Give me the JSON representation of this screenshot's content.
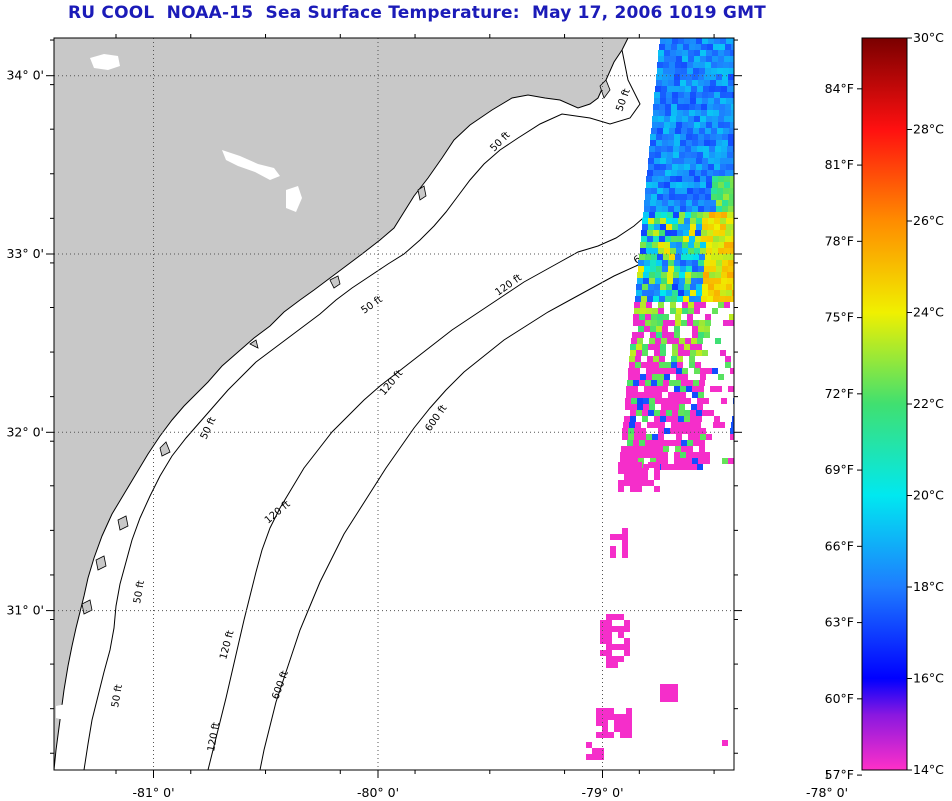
{
  "title": "RU COOL  NOAA-15  Sea Surface Temperature:  May 17, 2006 1019 GMT",
  "map": {
    "lat_ticks": [
      {
        "value": 34,
        "label": "34° 0'"
      },
      {
        "value": 33,
        "label": "33° 0'"
      },
      {
        "value": 32,
        "label": "32° 0'"
      },
      {
        "value": 31,
        "label": "31° 0'"
      }
    ],
    "lon_ticks": [
      {
        "value": -81,
        "label": "-81° 0'"
      },
      {
        "value": -80,
        "label": "-80° 0'"
      },
      {
        "value": -79,
        "label": "-79° 0'"
      },
      {
        "value": -78,
        "label": "-78° 0'"
      }
    ],
    "contour_labels": [
      "50 ft",
      "120 ft",
      "600 ft"
    ],
    "colors": {
      "land": "#c8c8c8",
      "ocean": "#ffffff",
      "coast": "#000000"
    }
  },
  "colorbar": {
    "celsius_labels": [
      "30°C",
      "28°C",
      "26°C",
      "24°C",
      "22°C",
      "20°C",
      "18°C",
      "16°C",
      "14°C"
    ],
    "celsius_values": [
      30,
      28,
      26,
      24,
      22,
      20,
      18,
      16,
      14
    ],
    "fahrenheit_labels": [
      "84°F",
      "81°F",
      "78°F",
      "75°F",
      "72°F",
      "69°F",
      "66°F",
      "63°F",
      "60°F",
      "57°F"
    ],
    "fahrenheit_values": [
      84,
      81,
      78,
      75,
      72,
      69,
      66,
      63,
      60,
      57
    ],
    "range_c": [
      14,
      30
    ],
    "stops": [
      {
        "t": 14,
        "color": "#ff30c8"
      },
      {
        "t": 15.2,
        "color": "#8a18e0"
      },
      {
        "t": 16,
        "color": "#0000ff"
      },
      {
        "t": 18,
        "color": "#1e7cff"
      },
      {
        "t": 20,
        "color": "#00e8f0"
      },
      {
        "t": 22,
        "color": "#40e070"
      },
      {
        "t": 24,
        "color": "#f0f000"
      },
      {
        "t": 26,
        "color": "#ff8c00"
      },
      {
        "t": 28,
        "color": "#ff1010"
      },
      {
        "t": 30,
        "color": "#7a0000"
      }
    ]
  }
}
